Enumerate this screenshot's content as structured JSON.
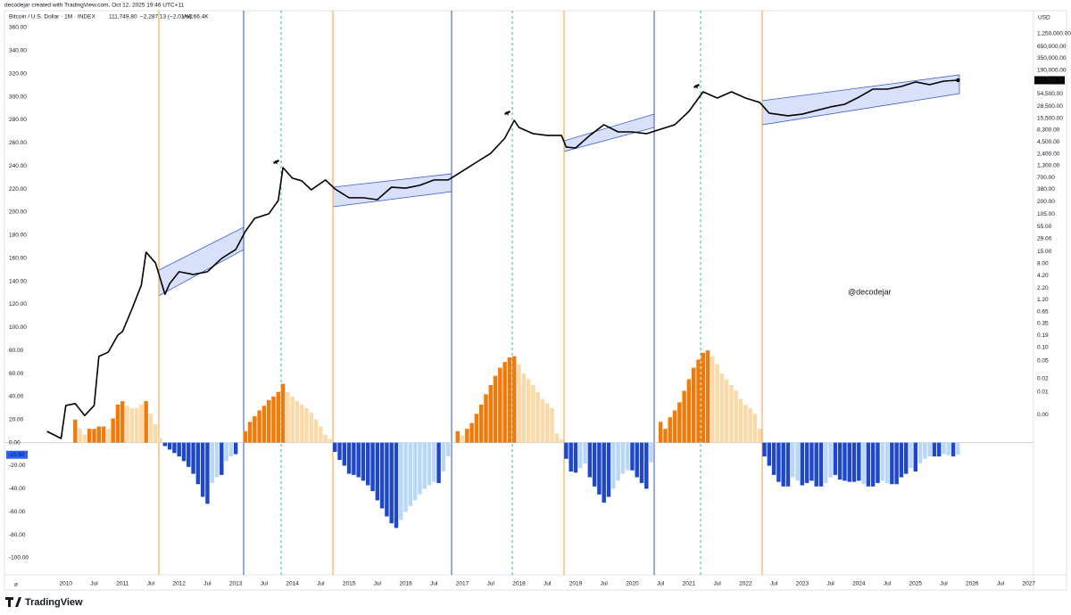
{
  "header": {
    "credit": "decodejar created with TradingView.com, Oct 12, 2025 19:46 UTC+11",
    "symbol": "Bitcoin / U.S. Dollar · 1M · INDEX",
    "last": "111,749.80",
    "change": "−2,287.13 (−2.01%)",
    "volume": "Vol166.4K"
  },
  "watermark": "@decodejar",
  "footer": {
    "brand": "TradingView"
  },
  "chart_data": {
    "type": "bar",
    "currency": "USD",
    "grid": false,
    "xlim": [
      "2008-12",
      "2027-02"
    ],
    "xticks": [
      {
        "value": "2010-01",
        "label": "2010"
      },
      {
        "value": "2010-07",
        "label": "Jul"
      },
      {
        "value": "2011-01",
        "label": "2011"
      },
      {
        "value": "2011-07",
        "label": "Jul"
      },
      {
        "value": "2012-01",
        "label": "2012"
      },
      {
        "value": "2012-07",
        "label": "Jul"
      },
      {
        "value": "2013-01",
        "label": "2013"
      },
      {
        "value": "2013-07",
        "label": "Jul"
      },
      {
        "value": "2014-01",
        "label": "2014"
      },
      {
        "value": "2014-07",
        "label": "Jul"
      },
      {
        "value": "2015-01",
        "label": "2015"
      },
      {
        "value": "2015-07",
        "label": "Jul"
      },
      {
        "value": "2016-01",
        "label": "2016"
      },
      {
        "value": "2016-07",
        "label": "Jul"
      },
      {
        "value": "2017-01",
        "label": "2017"
      },
      {
        "value": "2017-07",
        "label": "Jul"
      },
      {
        "value": "2018-01",
        "label": "2018"
      },
      {
        "value": "2018-07",
        "label": "Jul"
      },
      {
        "value": "2019-01",
        "label": "2019"
      },
      {
        "value": "2019-07",
        "label": "Jul"
      },
      {
        "value": "2020-01",
        "label": "2020"
      },
      {
        "value": "2020-07",
        "label": "Jul"
      },
      {
        "value": "2021-01",
        "label": "2021"
      },
      {
        "value": "2021-07",
        "label": "Jul"
      },
      {
        "value": "2022-01",
        "label": "2022"
      },
      {
        "value": "2022-07",
        "label": "Jul"
      },
      {
        "value": "2023-01",
        "label": "2023"
      },
      {
        "value": "2023-07",
        "label": "Jul"
      },
      {
        "value": "2024-01",
        "label": "2024"
      },
      {
        "value": "2024-07",
        "label": "Jul"
      },
      {
        "value": "2025-01",
        "label": "2025"
      },
      {
        "value": "2025-07",
        "label": "Jul"
      },
      {
        "value": "2026-01",
        "label": "2026"
      },
      {
        "value": "2026-07",
        "label": "Jul"
      },
      {
        "value": "2027-01",
        "label": "2027"
      }
    ],
    "ylim": [
      -114.7,
      374.7
    ],
    "yticks": [
      {
        "value": 360,
        "label": "360.00"
      },
      {
        "value": 340,
        "label": "340.00"
      },
      {
        "value": 320,
        "label": "320.00"
      },
      {
        "value": 300,
        "label": "300.00"
      },
      {
        "value": 280,
        "label": "280.00"
      },
      {
        "value": 260,
        "label": "260.00"
      },
      {
        "value": 240,
        "label": "240.00"
      },
      {
        "value": 220,
        "label": "220.00"
      },
      {
        "value": 200,
        "label": "200.00"
      },
      {
        "value": 180,
        "label": "180.00"
      },
      {
        "value": 160,
        "label": "160.00"
      },
      {
        "value": 140,
        "label": "140.00"
      },
      {
        "value": 120,
        "label": "120.00"
      },
      {
        "value": 100,
        "label": "100.00"
      },
      {
        "value": 80,
        "label": "80.00"
      },
      {
        "value": 60,
        "label": "60.00"
      },
      {
        "value": 40,
        "label": "40.00"
      },
      {
        "value": 20,
        "label": "20.00"
      },
      {
        "value": 0,
        "label": "0.00"
      },
      {
        "value": -20,
        "label": "-20.00"
      },
      {
        "value": -40,
        "label": "-40.00"
      },
      {
        "value": -60,
        "label": "-60.00"
      },
      {
        "value": -80,
        "label": "-80.00"
      },
      {
        "value": -100,
        "label": "-100.00"
      }
    ],
    "y2log": true,
    "y2lim": [
      7.2e-07,
      4180000
    ],
    "y2ticks": [
      {
        "value": 1250000,
        "label": "1,250,000.00"
      },
      {
        "value": 650000,
        "label": "650,000.00"
      },
      {
        "value": 350000,
        "label": "350,000.00"
      },
      {
        "value": 190000,
        "label": "190,000.00"
      },
      {
        "value": 54500,
        "label": "54,500.00"
      },
      {
        "value": 28500,
        "label": "28,500.00"
      },
      {
        "value": 15500,
        "label": "15,500.00"
      },
      {
        "value": 8300,
        "label": "8,300.00"
      },
      {
        "value": 4500,
        "label": "4,500.00"
      },
      {
        "value": 2400,
        "label": "2,400.00"
      },
      {
        "value": 1300,
        "label": "1,300.00"
      },
      {
        "value": 700,
        "label": "700.00"
      },
      {
        "value": 380,
        "label": "380.00"
      },
      {
        "value": 200,
        "label": "200.00"
      },
      {
        "value": 105,
        "label": "105.00"
      },
      {
        "value": 55,
        "label": "55.00"
      },
      {
        "value": 29,
        "label": "29.00"
      },
      {
        "value": 15,
        "label": "15.00"
      },
      {
        "value": 8,
        "label": "8.00"
      },
      {
        "value": 4.2,
        "label": "4.20"
      },
      {
        "value": 2.2,
        "label": "2.20"
      },
      {
        "value": 1.2,
        "label": "1.20"
      },
      {
        "value": 0.65,
        "label": "0.65"
      },
      {
        "value": 0.35,
        "label": "0.35"
      },
      {
        "value": 0.19,
        "label": "0.19"
      },
      {
        "value": 0.1,
        "label": "0.10"
      },
      {
        "value": 0.05,
        "label": "0.05"
      },
      {
        "value": 0.02,
        "label": "0.02"
      },
      {
        "value": 0.01,
        "label": "0.01"
      },
      {
        "value": 0.003,
        "label": "0.00"
      }
    ],
    "series": [
      {
        "color": "#f27a0a",
        "x": [
          "2010-03",
          "2010-06",
          "2010-07",
          "2010-08",
          "2010-09",
          "2010-11",
          "2010-12",
          "2011-01",
          "2011-06",
          "2013-03",
          "2013-04",
          "2013-05",
          "2013-06",
          "2013-07",
          "2013-08",
          "2013-09",
          "2013-10",
          "2013-11",
          "2016-12",
          "2017-02",
          "2017-03",
          "2017-04",
          "2017-05",
          "2017-06",
          "2017-07",
          "2017-08",
          "2017-09",
          "2017-10",
          "2017-11",
          "2017-12",
          "2020-07",
          "2020-08",
          "2020-09",
          "2020-10",
          "2020-11",
          "2020-12",
          "2021-01",
          "2021-02",
          "2021-03",
          "2021-04",
          "2021-05"
        ],
        "values": [
          20,
          12,
          12,
          14,
          14,
          21,
          33,
          36,
          36,
          10,
          18,
          23,
          28,
          32,
          37,
          40,
          44,
          51,
          10,
          12,
          17,
          25,
          33,
          42,
          50,
          58,
          65,
          70,
          74,
          75,
          18,
          12,
          22,
          28,
          35,
          45,
          55,
          65,
          72,
          78,
          80
        ]
      },
      {
        "color": "#fdd9a8",
        "x": [
          "2010-04",
          "2010-05",
          "2010-10",
          "2011-02",
          "2011-03",
          "2011-04",
          "2011-05",
          "2011-07",
          "2011-08",
          "2011-09",
          "2013-12",
          "2014-01",
          "2014-02",
          "2014-03",
          "2014-04",
          "2014-05",
          "2014-06",
          "2014-07",
          "2014-08",
          "2014-09",
          "2017-01",
          "2018-01",
          "2018-02",
          "2018-03",
          "2018-04",
          "2018-05",
          "2018-06",
          "2018-07",
          "2018-08",
          "2018-09",
          "2018-10",
          "2021-06",
          "2021-07",
          "2021-08",
          "2021-09",
          "2021-10",
          "2021-11",
          "2021-12",
          "2022-01",
          "2022-02",
          "2022-03",
          "2022-04"
        ],
        "values": [
          12,
          7,
          12,
          32,
          30,
          30,
          33,
          25,
          16,
          4,
          44,
          40,
          36,
          33,
          30,
          26,
          20,
          14,
          7,
          3,
          6,
          68,
          60,
          55,
          50,
          44,
          38,
          34,
          30,
          8,
          3,
          75,
          68,
          60,
          55,
          50,
          45,
          38,
          33,
          30,
          25,
          12
        ]
      },
      {
        "color": "#1e48c8",
        "x": [
          "2011-10",
          "2011-11",
          "2011-12",
          "2012-01",
          "2012-02",
          "2012-03",
          "2012-04",
          "2012-05",
          "2012-06",
          "2012-07",
          "2012-10",
          "2013-01",
          "2014-10",
          "2014-11",
          "2014-12",
          "2015-01",
          "2015-02",
          "2015-03",
          "2015-04",
          "2015-05",
          "2015-06",
          "2015-07",
          "2015-08",
          "2015-09",
          "2015-10",
          "2015-11",
          "2016-08",
          "2018-11",
          "2018-12",
          "2019-01",
          "2019-04",
          "2019-05",
          "2019-06",
          "2019-07",
          "2019-08",
          "2020-01",
          "2020-02",
          "2020-03",
          "2020-04",
          "2022-05",
          "2022-06",
          "2022-07",
          "2022-08",
          "2022-09",
          "2022-10",
          "2023-01",
          "2023-02",
          "2023-03",
          "2023-04",
          "2023-05",
          "2023-08",
          "2023-09",
          "2023-10",
          "2023-11",
          "2023-12",
          "2024-01",
          "2024-03",
          "2024-04",
          "2024-05",
          "2024-08",
          "2024-09",
          "2024-10",
          "2024-11",
          "2025-01",
          "2025-05",
          "2025-06",
          "2025-09"
        ],
        "values": [
          -3,
          -6,
          -9,
          -12,
          -16,
          -21,
          -27,
          -36,
          -47,
          -53,
          -28,
          -10,
          -8,
          -15,
          -20,
          -27,
          -28,
          -30,
          -33,
          -37,
          -42,
          -50,
          -57,
          -64,
          -70,
          -74,
          -35,
          -14,
          -25,
          -26,
          -30,
          -38,
          -45,
          -52,
          -47,
          -24,
          -30,
          -35,
          -40,
          -12,
          -20,
          -28,
          -34,
          -38,
          -38,
          -37,
          -35,
          -33,
          -38,
          -38,
          -28,
          -32,
          -33,
          -34,
          -34,
          -33,
          -38,
          -38,
          -35,
          -36,
          -36,
          -30,
          -27,
          -25,
          -12,
          -12,
          -12
        ]
      },
      {
        "color": "#b9d7f7",
        "x": [
          "2012-08",
          "2012-09",
          "2012-11",
          "2012-12",
          "2015-12",
          "2016-01",
          "2016-02",
          "2016-03",
          "2016-04",
          "2016-05",
          "2016-06",
          "2016-07",
          "2016-09",
          "2016-10",
          "2019-02",
          "2019-03",
          "2019-09",
          "2019-10",
          "2019-11",
          "2019-12",
          "2020-05",
          "2022-11",
          "2022-12",
          "2023-06",
          "2023-07",
          "2024-02",
          "2024-06",
          "2024-07",
          "2024-12",
          "2025-02",
          "2025-03",
          "2025-04",
          "2025-07",
          "2025-08",
          "2025-10"
        ],
        "values": [
          -35,
          -30,
          -16,
          -12,
          -67,
          -60,
          -55,
          -50,
          -45,
          -40,
          -37,
          -34,
          -25,
          -12,
          -22,
          -18,
          -40,
          -33,
          -27,
          -24,
          -17,
          -30,
          -33,
          -35,
          -30,
          -36,
          -33,
          -35,
          -22,
          -18,
          -14,
          -12,
          -10,
          -11,
          -10.5
        ],
        "last_value_label": "-10.50"
      },
      {
        "type": "line",
        "axis": "y2",
        "color": "#000000",
        "x": [
          "2009-09",
          "2009-12",
          "2010-01",
          "2010-03",
          "2010-05",
          "2010-07",
          "2010-08",
          "2010-10",
          "2010-12",
          "2011-01",
          "2011-03",
          "2011-05",
          "2011-06",
          "2011-08",
          "2011-10",
          "2011-11",
          "2012-01",
          "2012-04",
          "2012-07",
          "2012-10",
          "2013-01",
          "2013-03",
          "2013-05",
          "2013-08",
          "2013-10",
          "2013-11",
          "2014-01",
          "2014-03",
          "2014-05",
          "2014-08",
          "2014-10",
          "2015-01",
          "2015-04",
          "2015-07",
          "2015-10",
          "2016-01",
          "2016-04",
          "2016-07",
          "2016-10",
          "2017-01",
          "2017-04",
          "2017-07",
          "2017-10",
          "2017-12",
          "2018-01",
          "2018-04",
          "2018-07",
          "2018-10",
          "2018-11",
          "2019-01",
          "2019-04",
          "2019-07",
          "2019-10",
          "2020-01",
          "2020-04",
          "2020-07",
          "2020-10",
          "2021-01",
          "2021-04",
          "2021-07",
          "2021-10",
          "2022-01",
          "2022-04",
          "2022-06",
          "2022-10",
          "2023-01",
          "2023-04",
          "2023-07",
          "2023-10",
          "2024-01",
          "2024-04",
          "2024-07",
          "2024-10",
          "2025-01",
          "2025-04",
          "2025-07",
          "2025-10"
        ],
        "values": [
          0.00127,
          0.00088,
          0.0049,
          0.0054,
          0.0029,
          0.0049,
          0.063,
          0.079,
          0.19,
          0.23,
          0.74,
          2.6,
          14.4,
          8.2,
          1.6,
          2.8,
          5.2,
          4.5,
          5.2,
          10.4,
          16.5,
          42,
          84,
          106,
          212,
          1180,
          680,
          590,
          370,
          620,
          390,
          245,
          245,
          222,
          425,
          405,
          470,
          620,
          620,
          980,
          1560,
          2480,
          5470,
          13800,
          9550,
          6900,
          6300,
          6300,
          3440,
          3280,
          6300,
          11000,
          7570,
          7570,
          6900,
          8710,
          11000,
          22000,
          61200,
          44200,
          61200,
          44200,
          35100,
          20100,
          17500,
          19100,
          23100,
          27800,
          31900,
          46300,
          70300,
          70300,
          80700,
          102000,
          88700,
          106700,
          111749.8
        ],
        "last_value_label": "111,749.80"
      }
    ]
  }
}
